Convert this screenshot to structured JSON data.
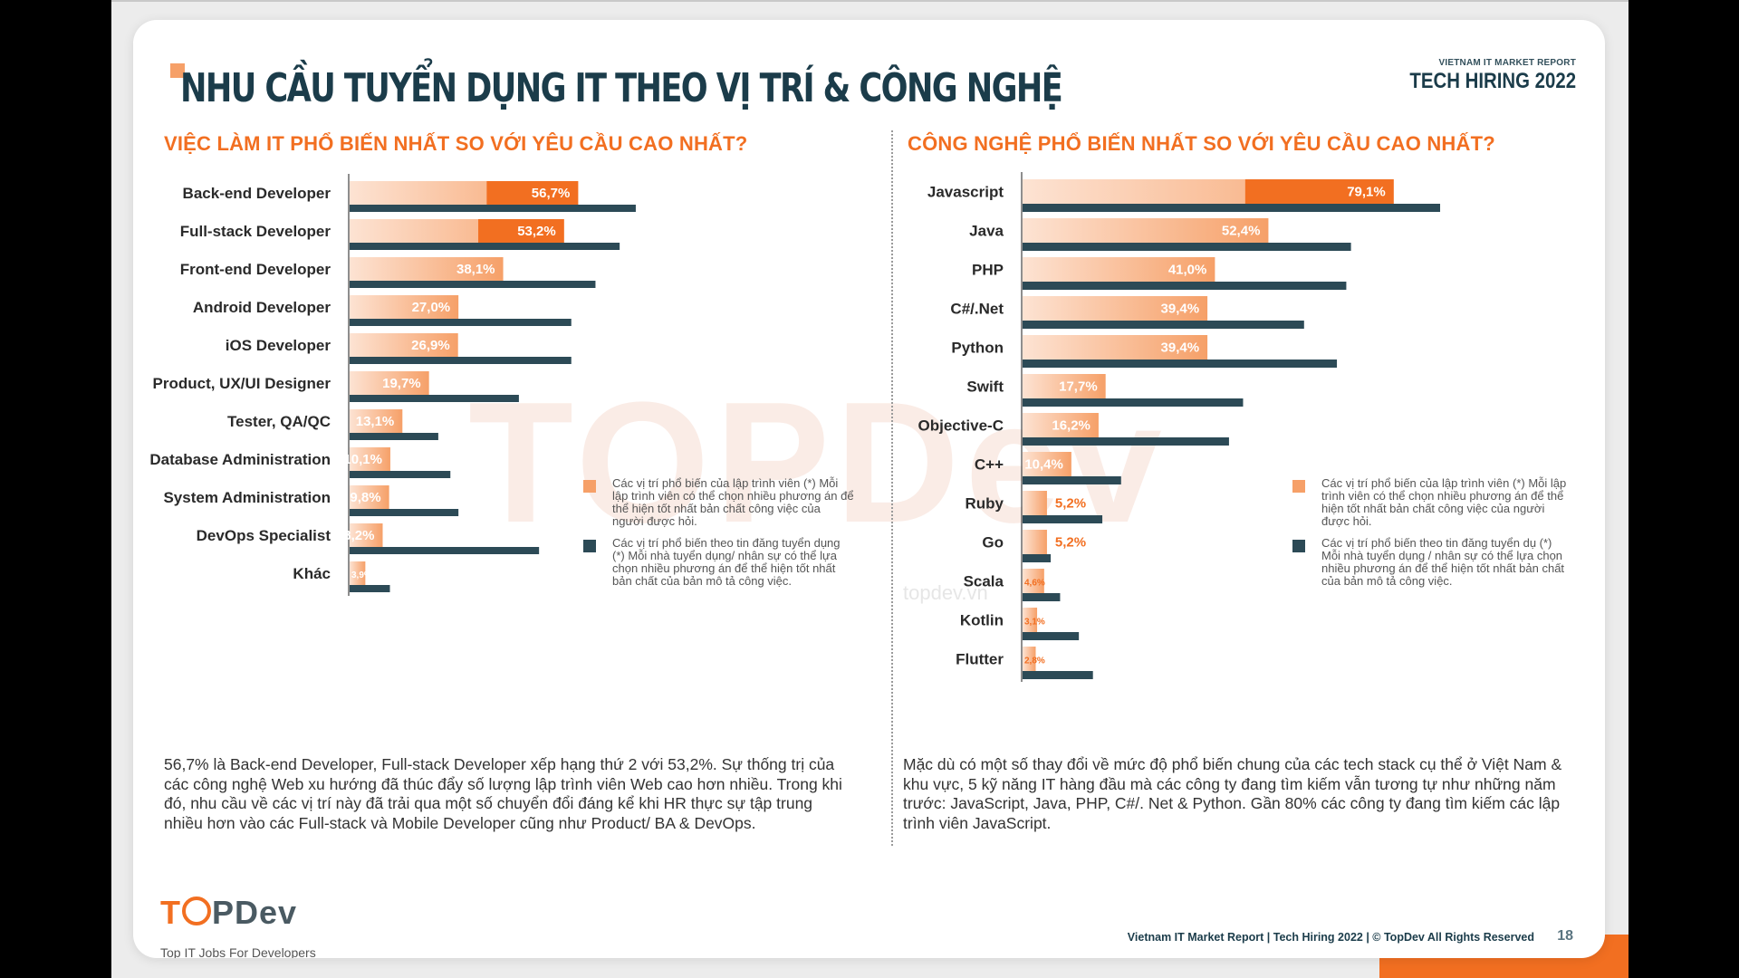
{
  "title": "NHU CẦU TUYỂN DỤNG IT THEO VỊ TRÍ & CÔNG NGHỆ",
  "report": {
    "small": "VIETNAM IT MARKET REPORT",
    "big": "TECH HIRING 2022"
  },
  "watermark": {
    "text": "TOPDev",
    "url": "topdev.vn"
  },
  "colors": {
    "orange": "#f26f21",
    "peach": "#f6a068",
    "navy": "#2c4a56",
    "title": "#1b3c4a"
  },
  "chart_data": [
    {
      "type": "bar",
      "orientation": "horizontal",
      "title": "VIỆC LÀM IT PHỔ BIẾN NHẤT SO VỚI YÊU CẦU CAO NHẤT?",
      "categories": [
        "Back-end Developer",
        "Full-stack Developer",
        "Front-end Developer",
        "Android Developer",
        "iOS Developer",
        "Product, UX/UI Designer",
        "Tester, QA/QC",
        "Database Administration",
        "System Administration",
        "DevOps Specialist",
        "Khác"
      ],
      "series": [
        {
          "name": "Các vị trí phổ biến của lập trình viên",
          "values": [
            56.7,
            53.2,
            38.1,
            27.0,
            26.9,
            19.7,
            13.1,
            10.1,
            9.8,
            8.2,
            3.9
          ],
          "labels": [
            "56,7%",
            "53,2%",
            "38,1%",
            "27,0%",
            "26,9%",
            "19,7%",
            "13,1%",
            "10,1%",
            "9,8%",
            "8,2%",
            "3,9%"
          ]
        },
        {
          "name": "Các vị trí phổ biến theo tin đăng tuyển dụng",
          "values": [
            71,
            67,
            61,
            55,
            55,
            42,
            22,
            25,
            27,
            47,
            10
          ]
        }
      ],
      "legend": [
        {
          "text": "Các vị trí phổ biến của lập trình viên (*) Mỗi lập trình viên có thể chọn nhiều phương án để thể hiện tốt nhất bản chất công việc của người được hỏi."
        },
        {
          "text": "Các vị trí phổ biến theo tin đăng tuyển dụng (*) Mỗi nhà tuyển dụng/ nhân sự có thể lựa chọn nhiều phương án để thể hiện tốt nhất bản chất của bản mô tả công việc."
        }
      ],
      "summary": "56,7% là Back-end Developer, Full-stack Developer xếp hạng thứ 2 với 53,2%. Sự thống trị của các công nghệ Web xu hướng đã thúc đẩy số lượng lập trình viên Web cao hơn nhiều. Trong khi đó, nhu cầu về các vị trí này đã trải qua một số chuyển đổi đáng kể khi HR thực sự tập trung nhiều hơn vào các Full-stack và Mobile Developer cũng như Product/ BA & DevOps."
    },
    {
      "type": "bar",
      "orientation": "horizontal",
      "title": "CÔNG NGHỆ PHỔ BIẾN NHẤT SO VỚI YÊU CẦU CAO NHẤT?",
      "categories": [
        "Javascript",
        "Java",
        "PHP",
        "C#/.Net",
        "Python",
        "Swift",
        "Objective-C",
        "C++",
        "Ruby",
        "Go",
        "Scala",
        "Kotlin",
        "Flutter"
      ],
      "series": [
        {
          "name": "Các vị trí phổ biến của lập trình viên",
          "values": [
            79.1,
            52.4,
            41.0,
            39.4,
            39.4,
            17.7,
            16.2,
            10.4,
            5.2,
            5.2,
            4.6,
            3.1,
            2.8
          ],
          "labels": [
            "79,1%",
            "52,4%",
            "41,0%",
            "39,4%",
            "39,4%",
            "17,7%",
            "16,2%",
            "10,4%",
            "5,2%",
            "5,2%",
            "4,6%",
            "3,1%",
            "2,8%"
          ]
        },
        {
          "name": "Các vị trí phổ biến theo tin đăng tuyển dụng",
          "values": [
            89,
            70,
            69,
            60,
            67,
            47,
            44,
            21,
            17,
            6,
            8,
            12,
            15
          ]
        }
      ],
      "legend": [
        {
          "text": "Các vị trí phổ biến của lập trình viên (*) Mỗi lập trình viên có thể chọn nhiều phương án để thể hiện tốt nhất bản chất công việc của người được hỏi."
        },
        {
          "text": "Các vị trí phổ biến theo tin đăng tuyển dụ (*) Mỗi nhà tuyển dụng / nhân sự có thể lựa chọn nhiều phương án để thể hiện tốt nhất bản chất của bản mô tả công việc."
        }
      ],
      "summary": "Mặc dù có một số thay đổi về mức độ phổ biến chung của các tech stack cụ thể ở Việt Nam & khu vực, 5 kỹ năng IT hàng đầu mà các công ty đang tìm kiếm vẫn tương tự như những năm trước: JavaScript, Java, PHP, C#/. Net & Python. Gần 80% các công ty đang tìm kiếm các lập trình viên JavaScript."
    }
  ],
  "footer": {
    "logo_top": "T",
    "logo_rest": "PDev",
    "tagline": "Top IT Jobs For Developers",
    "credit": "Vietnam IT Market Report | Tech Hiring 2022 | © TopDev All Rights Reserved",
    "page": "18"
  }
}
